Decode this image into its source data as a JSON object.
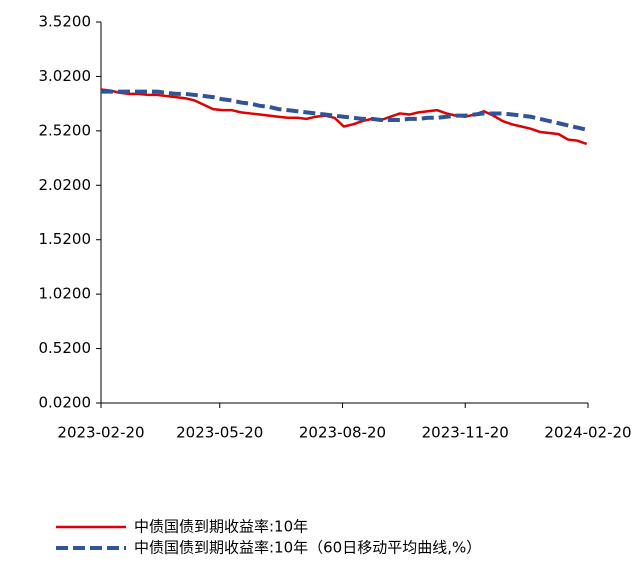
{
  "chart_data": {
    "type": "line",
    "x": [
      "2023-02-20",
      "2023-02-27",
      "2023-03-06",
      "2023-03-13",
      "2023-03-20",
      "2023-03-27",
      "2023-04-03",
      "2023-04-10",
      "2023-04-17",
      "2023-04-24",
      "2023-05-01",
      "2023-05-08",
      "2023-05-15",
      "2023-05-22",
      "2023-05-29",
      "2023-06-05",
      "2023-06-12",
      "2023-06-19",
      "2023-06-26",
      "2023-07-03",
      "2023-07-10",
      "2023-07-17",
      "2023-07-24",
      "2023-07-31",
      "2023-08-07",
      "2023-08-14",
      "2023-08-21",
      "2023-08-28",
      "2023-09-04",
      "2023-09-11",
      "2023-09-18",
      "2023-09-25",
      "2023-10-02",
      "2023-10-09",
      "2023-10-16",
      "2023-10-23",
      "2023-10-30",
      "2023-11-06",
      "2023-11-13",
      "2023-11-20",
      "2023-11-27",
      "2023-12-04",
      "2023-12-11",
      "2023-12-18",
      "2023-12-25",
      "2024-01-01",
      "2024-01-08",
      "2024-01-15",
      "2024-01-22",
      "2024-01-29",
      "2024-02-05",
      "2024-02-12",
      "2024-02-19"
    ],
    "series": [
      {
        "name": "中债国债到期收益率:10年",
        "color": "#e00000",
        "dash": false,
        "values": [
          2.9,
          2.89,
          2.87,
          2.86,
          2.86,
          2.85,
          2.85,
          2.84,
          2.83,
          2.82,
          2.8,
          2.76,
          2.72,
          2.71,
          2.71,
          2.69,
          2.68,
          2.67,
          2.66,
          2.65,
          2.64,
          2.64,
          2.63,
          2.65,
          2.66,
          2.64,
          2.56,
          2.58,
          2.61,
          2.63,
          2.62,
          2.65,
          2.68,
          2.67,
          2.69,
          2.7,
          2.71,
          2.68,
          2.66,
          2.65,
          2.67,
          2.7,
          2.66,
          2.61,
          2.58,
          2.56,
          2.54,
          2.51,
          2.5,
          2.49,
          2.44,
          2.43,
          2.4
        ]
      },
      {
        "name": "中债国债到期收益率:10年（60日移动平均曲线,%）",
        "color": "#2f5597",
        "dash": true,
        "values": [
          2.88,
          2.88,
          2.88,
          2.88,
          2.88,
          2.88,
          2.88,
          2.87,
          2.86,
          2.86,
          2.85,
          2.84,
          2.83,
          2.81,
          2.8,
          2.78,
          2.77,
          2.75,
          2.74,
          2.72,
          2.71,
          2.7,
          2.69,
          2.68,
          2.67,
          2.66,
          2.65,
          2.64,
          2.63,
          2.63,
          2.62,
          2.62,
          2.62,
          2.63,
          2.63,
          2.64,
          2.64,
          2.65,
          2.66,
          2.66,
          2.67,
          2.68,
          2.68,
          2.68,
          2.67,
          2.66,
          2.65,
          2.63,
          2.61,
          2.59,
          2.57,
          2.55,
          2.53
        ]
      }
    ],
    "xlim": [
      "2023-02-20",
      "2024-02-20"
    ],
    "xticks": [
      "2023-02-20",
      "2023-05-20",
      "2023-08-20",
      "2023-11-20",
      "2024-02-20"
    ],
    "ylim": [
      0.02,
      3.52
    ],
    "yticks": [
      {
        "value": 0.02,
        "label": "0.0200"
      },
      {
        "value": 0.52,
        "label": "0.5200"
      },
      {
        "value": 1.02,
        "label": "1.0200"
      },
      {
        "value": 1.52,
        "label": "1.5200"
      },
      {
        "value": 2.02,
        "label": "2.0200"
      },
      {
        "value": 2.52,
        "label": "2.5200"
      },
      {
        "value": 3.02,
        "label": "3.0200"
      },
      {
        "value": 3.52,
        "label": "3.5200"
      }
    ],
    "grid": false,
    "legend": "bottom"
  }
}
